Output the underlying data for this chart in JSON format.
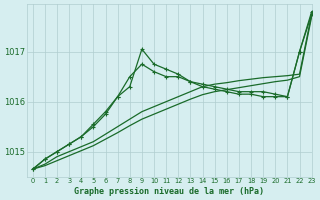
{
  "background_color": "#d6eef0",
  "grid_color": "#b0cdd0",
  "line_color": "#1a6b2a",
  "title": "Graphe pression niveau de la mer (hPa)",
  "xlim": [
    -0.5,
    23
  ],
  "ylim": [
    1014.5,
    1017.95
  ],
  "x_ticks": [
    0,
    1,
    2,
    3,
    4,
    5,
    6,
    7,
    8,
    9,
    10,
    11,
    12,
    13,
    14,
    15,
    16,
    17,
    18,
    19,
    20,
    21,
    22,
    23
  ],
  "y_ticks": [
    1015,
    1016,
    1017
  ],
  "series": [
    {
      "y": [
        1014.65,
        1014.85,
        1015.0,
        1015.15,
        1015.3,
        1015.5,
        1015.75,
        1016.1,
        1016.3,
        1017.05,
        1016.75,
        1016.65,
        1016.55,
        1016.4,
        1016.35,
        1016.3,
        1016.25,
        1016.2,
        1016.2,
        1016.2,
        1016.15,
        1016.1,
        1017.0,
        1017.8
      ],
      "marker": true
    },
    {
      "y": [
        1014.65,
        1014.85,
        1015.0,
        1015.15,
        1015.3,
        1015.55,
        1015.8,
        1016.1,
        1016.5,
        1016.75,
        1016.6,
        1016.5,
        1016.5,
        1016.4,
        1016.3,
        1016.25,
        1016.2,
        1016.15,
        1016.15,
        1016.1,
        1016.1,
        1016.1,
        1017.0,
        1017.75
      ],
      "marker": true
    },
    {
      "y": [
        1014.65,
        1014.75,
        1014.9,
        1015.0,
        1015.1,
        1015.2,
        1015.35,
        1015.5,
        1015.65,
        1015.8,
        1015.9,
        1016.0,
        1016.1,
        1016.2,
        1016.3,
        1016.35,
        1016.38,
        1016.42,
        1016.45,
        1016.48,
        1016.5,
        1016.52,
        1016.55,
        1017.75
      ],
      "marker": false
    },
    {
      "y": [
        1014.65,
        1014.72,
        1014.82,
        1014.92,
        1015.02,
        1015.12,
        1015.25,
        1015.38,
        1015.52,
        1015.65,
        1015.75,
        1015.85,
        1015.95,
        1016.05,
        1016.14,
        1016.2,
        1016.24,
        1016.28,
        1016.32,
        1016.36,
        1016.4,
        1016.43,
        1016.5,
        1017.7
      ],
      "marker": false
    }
  ]
}
